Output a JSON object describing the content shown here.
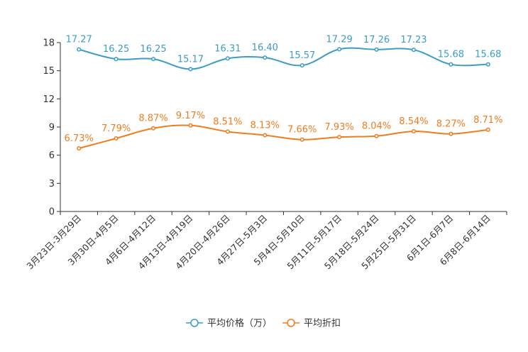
{
  "chart_data": {
    "type": "line",
    "title": "",
    "xlabel": "",
    "ylabel": "",
    "ylim": [
      0,
      18
    ],
    "yticks": [
      0,
      3,
      6,
      9,
      12,
      15,
      18
    ],
    "categories": [
      "3月23日-3月29日",
      "3月30日-4月5日",
      "4月6日-4月12日",
      "4月13日-4月19日",
      "4月20日-4月26日",
      "4月27日-5月3日",
      "5月4日-5月10日",
      "5月11日-5月17日",
      "5月18日-5月24日",
      "5月25日-5月31日",
      "6月1日-6月7日",
      "6月8日-6月14日"
    ],
    "series": [
      {
        "name": "平均价格（万）",
        "color": "#3a9cc8",
        "values": [
          17.27,
          16.25,
          16.25,
          15.17,
          16.31,
          16.4,
          15.57,
          17.29,
          17.26,
          17.23,
          15.68,
          15.68
        ],
        "labels": [
          "17.27",
          "16.25",
          "16.25",
          "15.17",
          "16.31",
          "16.40",
          "15.57",
          "17.29",
          "17.26",
          "17.23",
          "15.68",
          "15.68"
        ]
      },
      {
        "name": "平均折扣",
        "color": "#f07c1e",
        "values": [
          6.73,
          7.79,
          8.87,
          9.17,
          8.51,
          8.13,
          7.66,
          7.93,
          8.04,
          8.54,
          8.27,
          8.71
        ],
        "labels": [
          "6.73%",
          "7.79%",
          "8.87%",
          "9.17%",
          "8.51%",
          "8.13%",
          "7.66%",
          "7.93%",
          "8.04%",
          "8.54%",
          "8.27%",
          "8.71%"
        ]
      }
    ],
    "legend_position": "bottom-center",
    "grid": false
  }
}
